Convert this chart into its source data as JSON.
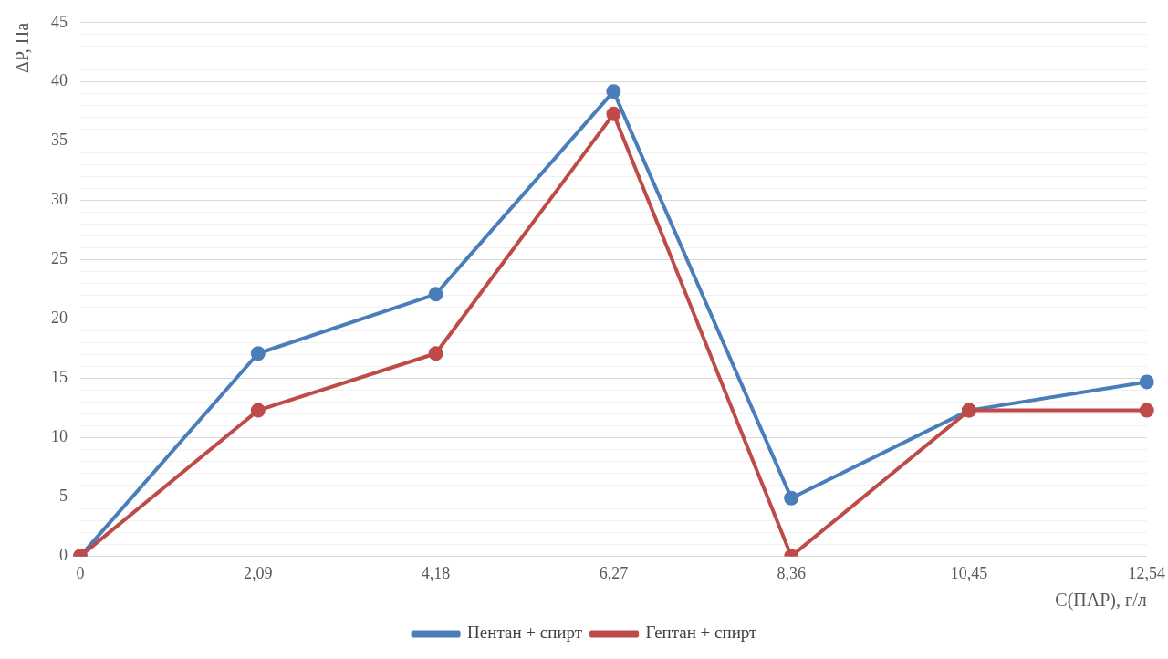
{
  "chart_data": {
    "type": "line",
    "xlabel": "C(ПАР), г/л",
    "ylabel": "ΔP, Па",
    "categories": [
      "0",
      "2,09",
      "4,18",
      "6,27",
      "8,36",
      "10,45",
      "12,54"
    ],
    "series": [
      {
        "name": "Пентан + спирт",
        "color": "#4a7ebb",
        "values": [
          0,
          17.1,
          22.1,
          39.2,
          4.9,
          12.3,
          14.7
        ]
      },
      {
        "name": "Гептан + спирт",
        "color": "#be4b48",
        "values": [
          0,
          12.3,
          17.1,
          37.3,
          0,
          12.3,
          12.3
        ]
      }
    ],
    "ylim": [
      0,
      45
    ],
    "yticks": [
      0,
      {
        "value": 1,
        "label": null
      },
      {
        "value": 2,
        "label": null
      },
      {
        "value": 3,
        "label": null
      },
      {
        "value": 4,
        "label": null
      },
      5,
      {
        "value": 6,
        "label": null
      },
      {
        "value": 7,
        "label": null
      },
      {
        "value": 8,
        "label": null
      },
      {
        "value": 9,
        "label": null
      },
      10,
      {
        "value": 11,
        "label": null
      },
      {
        "value": 12,
        "label": null
      },
      {
        "value": 13,
        "label": null
      },
      {
        "value": 14,
        "label": null
      },
      15,
      {
        "value": 16,
        "label": null
      },
      {
        "value": 17,
        "label": null
      },
      {
        "value": 18,
        "label": null
      },
      {
        "value": 19,
        "label": null
      },
      20,
      {
        "value": 21,
        "label": null
      },
      {
        "value": 22,
        "label": null
      },
      {
        "value": 23,
        "label": null
      },
      {
        "value": 24,
        "label": null
      },
      25,
      {
        "value": 26,
        "label": null
      },
      {
        "value": 27,
        "label": null
      },
      {
        "value": 28,
        "label": null
      },
      {
        "value": 29,
        "label": null
      },
      30,
      {
        "value": 31,
        "label": null
      },
      {
        "value": 32,
        "label": null
      },
      {
        "value": 33,
        "label": null
      },
      {
        "value": 34,
        "label": null
      },
      35,
      {
        "value": 36,
        "label": null
      },
      {
        "value": 37,
        "label": null
      },
      {
        "value": 38,
        "label": null
      },
      {
        "value": 39,
        "label": null
      },
      40,
      {
        "value": 41,
        "label": null
      },
      {
        "value": 42,
        "label": null
      },
      {
        "value": 43,
        "label": null
      },
      {
        "value": 44,
        "label": null
      },
      45
    ],
    "grid": "y",
    "legend": "bottom",
    "marker": "circle",
    "line_style": "solid"
  }
}
